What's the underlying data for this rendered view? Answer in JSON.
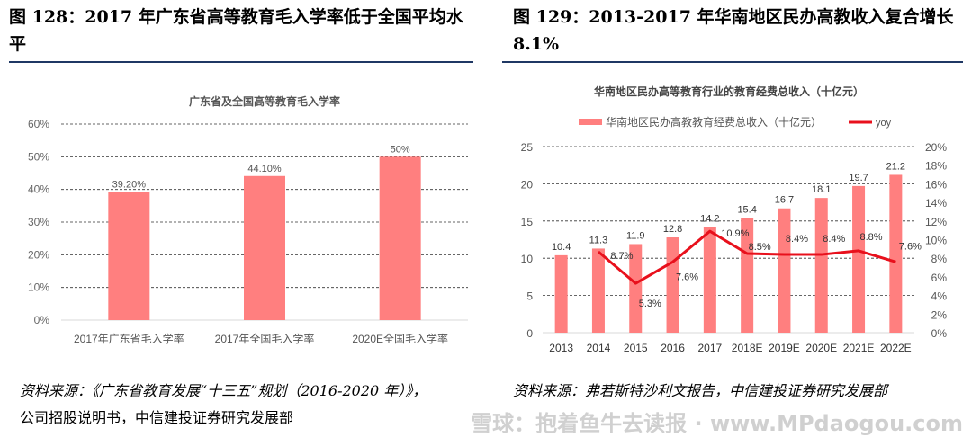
{
  "left": {
    "heading": "图 128：2017 年广东省高等教育毛入学率低于全国平均水平",
    "source_line1": "资料来源：《广东省教育发展“十三五”规划（2016-2020 年）》，",
    "source_line2": "公司招股说明书，中信建投证券研究发展部"
  },
  "right": {
    "heading_line1": "图  129：2013-2017  年华南地区民办高教收入复合增长",
    "heading_line2": "8.1%",
    "source_line1": "资料来源：弗若斯特沙利文报告，中信建投证券研究发展部"
  },
  "watermark": "雪球：抱着鱼牛去读报 · www.MPdaogou.com",
  "chart_data": [
    {
      "type": "bar",
      "title": "广东省及全国高等教育毛入学率",
      "categories": [
        "2017年广东省毛入学率",
        "2017年全国毛入学率",
        "2020E全国毛入学率"
      ],
      "values": [
        39.2,
        44.1,
        50
      ],
      "labels": [
        "39.20%",
        "44.10%",
        "50%"
      ],
      "ylim": [
        0,
        60
      ],
      "yticks": [
        "0%",
        "10%",
        "20%",
        "30%",
        "40%",
        "50%",
        "60%"
      ],
      "grid": true,
      "color": "#ff7f7f"
    },
    {
      "type": "bar+line",
      "title": "华南地区民办高等教育行业的教育经费总收入（十亿元）",
      "categories": [
        "2013",
        "2014",
        "2015",
        "2016",
        "2017",
        "2018E",
        "2019E",
        "2020E",
        "2021E",
        "2022E"
      ],
      "series": [
        {
          "name": "华南地区民办高教教育经费总收入（十亿元）",
          "type": "bar",
          "axis": "left",
          "color": "#ff7f7f",
          "values": [
            10.4,
            11.3,
            11.9,
            12.8,
            14.2,
            15.4,
            16.7,
            18.1,
            19.7,
            21.2
          ]
        },
        {
          "name": "yoy",
          "type": "line",
          "axis": "right",
          "color": "#e8101c",
          "values": [
            null,
            8.7,
            5.3,
            7.6,
            10.9,
            8.5,
            8.4,
            8.4,
            8.8,
            7.6
          ],
          "labels": [
            "",
            "8.7%",
            "5.3%",
            "7.6%",
            "10.9%",
            "8.5%",
            "8.4%",
            "8.4%",
            "8.8%",
            "7.6%"
          ]
        }
      ],
      "ylim_left": [
        0,
        25
      ],
      "yticks_left": [
        "0",
        "5",
        "10",
        "15",
        "20",
        "25"
      ],
      "ylim_right": [
        0,
        20
      ],
      "yticks_right": [
        "0%",
        "2%",
        "4%",
        "6%",
        "8%",
        "10%",
        "12%",
        "14%",
        "16%",
        "18%",
        "20%"
      ],
      "grid": true,
      "legend": "top"
    }
  ]
}
